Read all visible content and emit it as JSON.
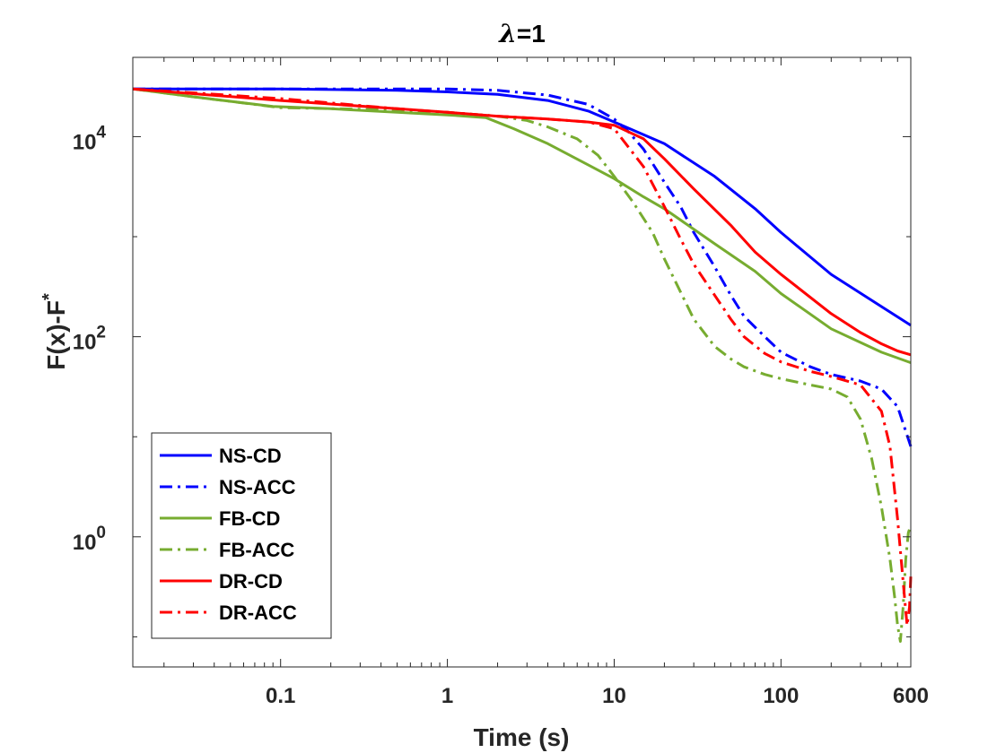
{
  "chart_data": {
    "type": "line",
    "title_symbol": "λ",
    "title_rest": "=1",
    "xlabel": "Time (s)",
    "ylabel_main": "F(x)-F",
    "ylabel_sup": "*",
    "x_scale": "log",
    "y_scale": "log",
    "xlim": [
      0.013,
      600
    ],
    "ylim": [
      0.05,
      62000
    ],
    "x_ticks": [
      {
        "value": 0.1,
        "label": "0.1"
      },
      {
        "value": 1,
        "label": "1"
      },
      {
        "value": 10,
        "label": "10"
      },
      {
        "value": 100,
        "label": "100"
      },
      {
        "value": 600,
        "label": "600"
      }
    ],
    "y_ticks": [
      {
        "value": 10000,
        "base": "10",
        "exp": "4"
      },
      {
        "value": 100,
        "base": "10",
        "exp": "2"
      },
      {
        "value": 1,
        "base": "10",
        "exp": "0"
      }
    ],
    "legend_position": "bottom-left",
    "series": [
      {
        "name": "NS-CD",
        "color": "#0000ff",
        "dash": "solid",
        "x": [
          0.013,
          0.1,
          0.5,
          1,
          2,
          4,
          7,
          10,
          20,
          40,
          70,
          100,
          200,
          400,
          600
        ],
        "y": [
          30000,
          30000,
          29000,
          28000,
          26500,
          23000,
          18000,
          14000,
          8500,
          4000,
          1900,
          1100,
          420,
          200,
          130
        ]
      },
      {
        "name": "NS-ACC",
        "color": "#0000ff",
        "dash": "dashdot",
        "x": [
          0.013,
          0.1,
          1,
          2,
          4,
          7,
          10,
          12,
          15,
          20,
          25,
          30,
          40,
          50,
          60,
          80,
          100,
          150,
          200,
          300,
          400,
          500,
          600
        ],
        "y": [
          30000,
          30000,
          30000,
          29000,
          26000,
          21000,
          15000,
          11500,
          7500,
          3500,
          2000,
          1100,
          500,
          260,
          160,
          100,
          70,
          50,
          42,
          36,
          30,
          20,
          8
        ]
      },
      {
        "name": "FB-CD",
        "color": "#77ac30",
        "dash": "solid",
        "x": [
          0.013,
          0.03,
          0.09,
          0.2,
          0.5,
          1,
          1.7,
          2.5,
          4,
          7,
          10,
          15,
          20,
          40,
          70,
          100,
          200,
          400,
          600
        ],
        "y": [
          30000,
          25000,
          20000,
          19000,
          17500,
          16500,
          15500,
          12000,
          8500,
          5200,
          3800,
          2500,
          1900,
          850,
          450,
          270,
          120,
          70,
          55
        ]
      },
      {
        "name": "FB-ACC",
        "color": "#77ac30",
        "dash": "dashdot",
        "x": [
          0.013,
          0.03,
          0.1,
          0.5,
          1,
          2,
          3,
          4,
          6,
          8,
          10,
          13,
          17,
          20,
          25,
          30,
          40,
          50,
          60,
          80,
          100,
          150,
          200,
          250,
          300,
          350,
          400,
          450,
          480,
          500,
          520,
          540,
          560,
          580,
          600
        ],
        "y": [
          30000,
          25000,
          19500,
          18500,
          17500,
          16000,
          14500,
          12500,
          9500,
          6500,
          4000,
          2200,
          1100,
          600,
          280,
          150,
          80,
          60,
          50,
          42,
          38,
          33,
          30,
          25,
          15,
          6,
          2,
          0.6,
          0.25,
          0.13,
          0.09,
          0.2,
          0.6,
          1.1,
          1.3
        ]
      },
      {
        "name": "DR-CD",
        "color": "#ff0000",
        "dash": "solid",
        "x": [
          0.013,
          0.1,
          0.5,
          1,
          2,
          4,
          7,
          10,
          15,
          20,
          30,
          50,
          70,
          100,
          200,
          300,
          400,
          500,
          600
        ],
        "y": [
          30000,
          23000,
          19000,
          17500,
          16000,
          15000,
          14000,
          13000,
          9500,
          6000,
          3000,
          1300,
          700,
          420,
          170,
          110,
          85,
          72,
          66
        ]
      },
      {
        "name": "DR-ACC",
        "color": "#ff0000",
        "dash": "dashdot",
        "x": [
          0.013,
          0.1,
          0.5,
          1,
          2,
          4,
          7,
          10,
          15,
          20,
          25,
          30,
          40,
          50,
          60,
          80,
          100,
          150,
          200,
          300,
          400,
          450,
          500,
          550,
          570,
          590,
          600
        ],
        "y": [
          30000,
          24000,
          19000,
          17500,
          16000,
          15000,
          14000,
          12000,
          5000,
          2000,
          950,
          530,
          260,
          150,
          100,
          68,
          56,
          45,
          40,
          33,
          18,
          8,
          1.5,
          0.25,
          0.13,
          0.2,
          0.4
        ]
      }
    ]
  }
}
